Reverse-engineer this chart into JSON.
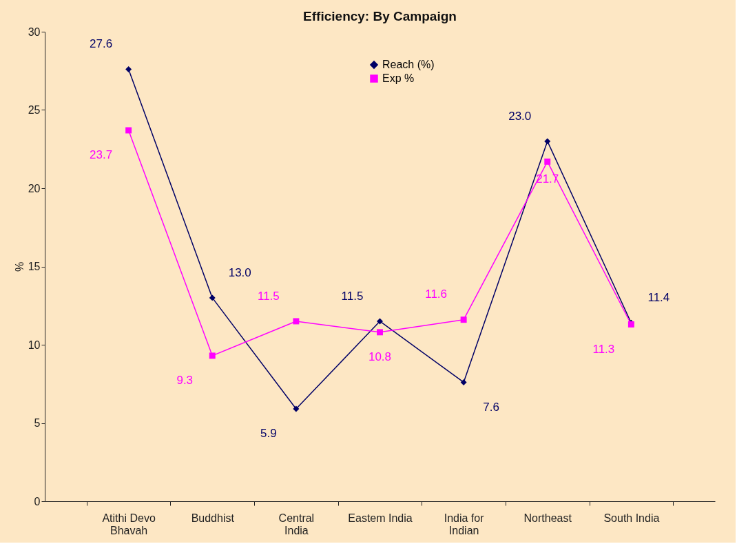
{
  "chart_data": {
    "type": "line",
    "title": "Efficiency: By Campaign",
    "ylabel": "%",
    "categories": [
      "Atithi Devo Bhavah",
      "Buddhist",
      "Central India",
      "Eastem India",
      "India for Indian",
      "Northeast",
      "South India"
    ],
    "series": [
      {
        "name": "Reach (%)",
        "color": "#000066",
        "marker": "diamond",
        "values": [
          27.6,
          13.0,
          5.9,
          11.5,
          7.6,
          23.0,
          11.4
        ],
        "value_labels": [
          "27.6",
          "13.0",
          "5.9",
          "11.5",
          "7.6",
          "23.0",
          "11.4"
        ]
      },
      {
        "name": "Exp %",
        "color": "#ff00ff",
        "marker": "square",
        "values": [
          23.7,
          9.3,
          11.5,
          10.8,
          11.6,
          21.7,
          11.3
        ],
        "value_labels": [
          "23.7",
          "9.3",
          "11.5",
          "10.8",
          "11.6",
          "21.7",
          "11.3"
        ]
      }
    ],
    "ylim": [
      0,
      30
    ],
    "yticks": [
      0,
      5,
      10,
      15,
      20,
      25,
      30
    ],
    "grid": false,
    "legend": "top"
  }
}
